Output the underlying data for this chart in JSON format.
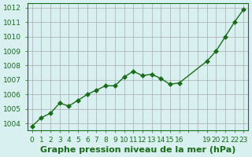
{
  "x": [
    0,
    1,
    2,
    3,
    4,
    5,
    6,
    7,
    8,
    9,
    10,
    11,
    12,
    13,
    14,
    15,
    16,
    19,
    20,
    21,
    22,
    23
  ],
  "y": [
    1003.8,
    1004.4,
    1004.7,
    1005.4,
    1005.2,
    1005.6,
    1006.0,
    1006.3,
    1006.6,
    1006.6,
    1007.2,
    1007.6,
    1007.3,
    1007.4,
    1007.1,
    1006.7,
    1006.8,
    1008.3,
    1009.0,
    1010.0,
    1011.0,
    1011.9
  ],
  "line_color": "#1a6b1a",
  "marker": "D",
  "marker_size": 3,
  "bg_color": "#d8f0f0",
  "grid_color": "#aaaaaa",
  "ylabel_ticks": [
    1004,
    1005,
    1006,
    1007,
    1008,
    1009,
    1010,
    1011,
    1012
  ],
  "xtick_positions": [
    0,
    1,
    2,
    3,
    4,
    5,
    6,
    7,
    8,
    9,
    10,
    11,
    12,
    13,
    14,
    15,
    16,
    17,
    18,
    19,
    20,
    21,
    22,
    23
  ],
  "xtick_labels": [
    "0",
    "1",
    "2",
    "3",
    "4",
    "5",
    "6",
    "7",
    "8",
    "9",
    "10",
    "11",
    "12",
    "13",
    "14",
    "15",
    "16",
    "",
    "",
    "19",
    "20",
    "21",
    "22",
    "23"
  ],
  "xlabel": "Graphe pression niveau de la mer (hPa)",
  "xlim": [
    -0.5,
    23.5
  ],
  "ylim": [
    1003.5,
    1012.3
  ],
  "line_dark_color": "#1a6b1a",
  "tick_fontsize": 6.5,
  "xlabel_fontsize": 8
}
